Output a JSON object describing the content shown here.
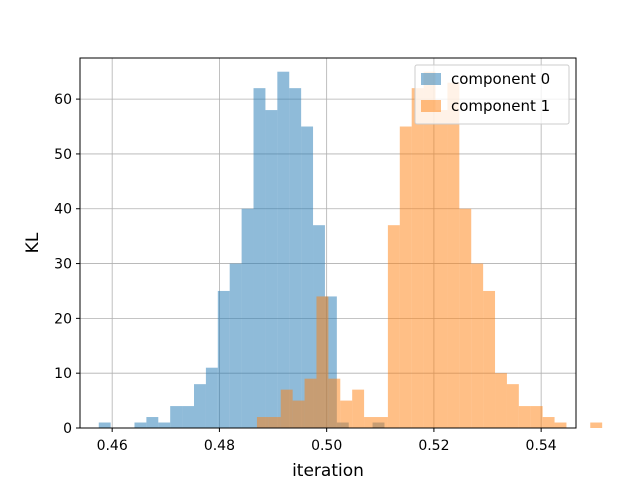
{
  "chart_data": {
    "type": "histogram",
    "xlabel": "iteration",
    "ylabel": "KL",
    "xlim": [
      0.454,
      0.5465
    ],
    "ylim": [
      0,
      67.5
    ],
    "xticks": [
      0.46,
      0.48,
      0.5,
      0.52,
      0.54
    ],
    "xtick_labels": [
      "0.46",
      "0.48",
      "0.50",
      "0.52",
      "0.54"
    ],
    "yticks": [
      0,
      10,
      20,
      30,
      40,
      50,
      60
    ],
    "ytick_labels": [
      "0",
      "10",
      "20",
      "30",
      "40",
      "50",
      "60"
    ],
    "grid": true,
    "legend_position": "upper right",
    "series": [
      {
        "name": "component 0",
        "color": "#1f77b4",
        "alpha": 0.5,
        "bin_start": 0.4575,
        "bin_width": 0.00222,
        "counts": [
          1,
          0,
          0,
          1,
          2,
          1,
          4,
          4,
          8,
          11,
          25,
          30,
          40,
          62,
          58,
          65,
          62,
          55,
          37,
          24,
          1,
          0,
          0,
          1
        ]
      },
      {
        "name": "component 1",
        "color": "#ff7f0e",
        "alpha": 0.5,
        "bin_start": 0.487,
        "bin_width": 0.00222,
        "counts": [
          2,
          2,
          7,
          5,
          9,
          24,
          9,
          5,
          7,
          2,
          2,
          37,
          55,
          62,
          65,
          58,
          63,
          40,
          30,
          25,
          10,
          8,
          4,
          4,
          2,
          1,
          0,
          0,
          1
        ]
      }
    ]
  }
}
